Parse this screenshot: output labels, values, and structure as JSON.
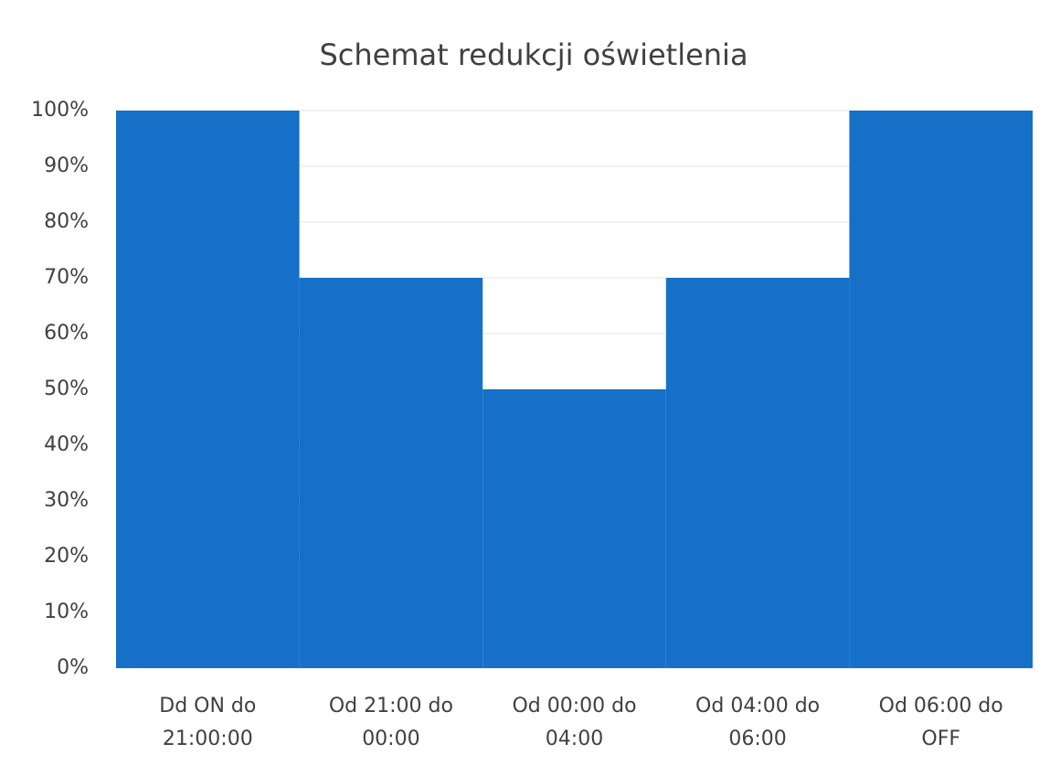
{
  "chart_data": {
    "type": "bar",
    "title": "Schemat redukcji oświetlenia",
    "categories": [
      "Dd ON do 21:00:00",
      "Od 21:00 do 00:00",
      "Od 00:00 do 04:00",
      "Od 04:00 do 06:00",
      "Od 06:00 do OFF"
    ],
    "values": [
      100,
      70,
      50,
      70,
      100
    ],
    "color": "#1670c8",
    "ylim": [
      0,
      100
    ],
    "yticks": [
      {
        "value": 0,
        "label": "0%"
      },
      {
        "value": 10,
        "label": "10%"
      },
      {
        "value": 20,
        "label": "20%"
      },
      {
        "value": 30,
        "label": "30%"
      },
      {
        "value": 40,
        "label": "40%"
      },
      {
        "value": 50,
        "label": "50%"
      },
      {
        "value": 60,
        "label": "60%"
      },
      {
        "value": 70,
        "label": "70%"
      },
      {
        "value": 80,
        "label": "80%"
      },
      {
        "value": 90,
        "label": "90%"
      },
      {
        "value": 100,
        "label": "100%"
      }
    ],
    "grid": true
  }
}
